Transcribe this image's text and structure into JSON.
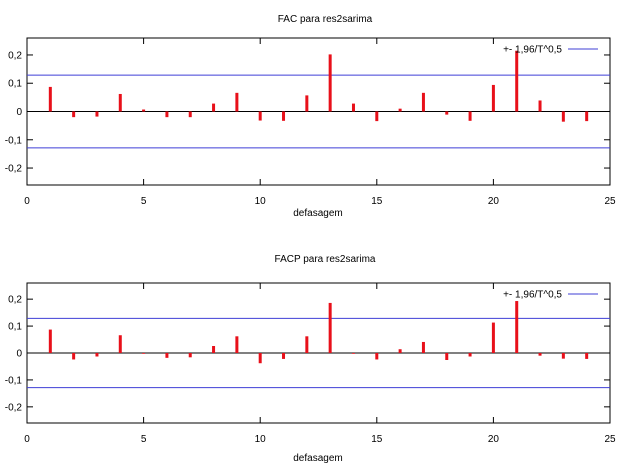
{
  "chart_data": [
    {
      "type": "bar",
      "title": "FAC para res2sarima",
      "xlabel": "defasagem",
      "ylabel": "",
      "xlim": [
        0,
        25
      ],
      "ylim": [
        -0.26,
        0.26
      ],
      "xticks": [
        0,
        5,
        10,
        15,
        20,
        25
      ],
      "xtick_labels": [
        "0",
        "5",
        "10",
        "15",
        "20",
        "25"
      ],
      "yticks": [
        -0.2,
        -0.1,
        0,
        0.1,
        0.2
      ],
      "ytick_labels": [
        "-0,2",
        "-0,1",
        "0",
        "0,1",
        "0,2"
      ],
      "bar_color": "#e8101a",
      "band_color": "#3f3fd6",
      "band": 0.1285,
      "legend": {
        "label": "+- 1,96/T^0,5",
        "position": "top-right"
      },
      "grid": false,
      "x": [
        1,
        2,
        3,
        4,
        5,
        6,
        7,
        8,
        9,
        10,
        11,
        12,
        13,
        14,
        15,
        16,
        17,
        18,
        19,
        20,
        21,
        22,
        23,
        24
      ],
      "values": [
        0.087,
        -0.02,
        -0.018,
        0.062,
        0.007,
        -0.02,
        -0.02,
        0.028,
        0.066,
        -0.032,
        -0.033,
        0.057,
        0.202,
        0.028,
        -0.034,
        0.01,
        0.066,
        -0.011,
        -0.033,
        0.094,
        0.215,
        0.039,
        -0.036,
        -0.034
      ]
    },
    {
      "type": "bar",
      "title": "FACP para res2sarima",
      "xlabel": "defasagem",
      "ylabel": "",
      "xlim": [
        0,
        25
      ],
      "ylim": [
        -0.26,
        0.26
      ],
      "xticks": [
        0,
        5,
        10,
        15,
        20,
        25
      ],
      "xtick_labels": [
        "0",
        "5",
        "10",
        "15",
        "20",
        "25"
      ],
      "yticks": [
        -0.2,
        -0.1,
        0,
        0.1,
        0.2
      ],
      "ytick_labels": [
        "-0,2",
        "-0,1",
        "0",
        "0,1",
        "0,2"
      ],
      "bar_color": "#e8101a",
      "band_color": "#3f3fd6",
      "band": 0.1285,
      "legend": {
        "label": "+- 1,96/T^0,5",
        "position": "top-right"
      },
      "grid": false,
      "x": [
        1,
        2,
        3,
        4,
        5,
        6,
        7,
        8,
        9,
        10,
        11,
        12,
        13,
        14,
        15,
        16,
        17,
        18,
        19,
        20,
        21,
        22,
        23,
        24
      ],
      "values": [
        0.087,
        -0.024,
        -0.013,
        0.066,
        -0.002,
        -0.018,
        -0.016,
        0.026,
        0.062,
        -0.038,
        -0.022,
        0.062,
        0.186,
        0.0,
        -0.024,
        0.014,
        0.041,
        -0.026,
        -0.013,
        0.113,
        0.193,
        -0.01,
        -0.021,
        -0.022
      ]
    }
  ]
}
